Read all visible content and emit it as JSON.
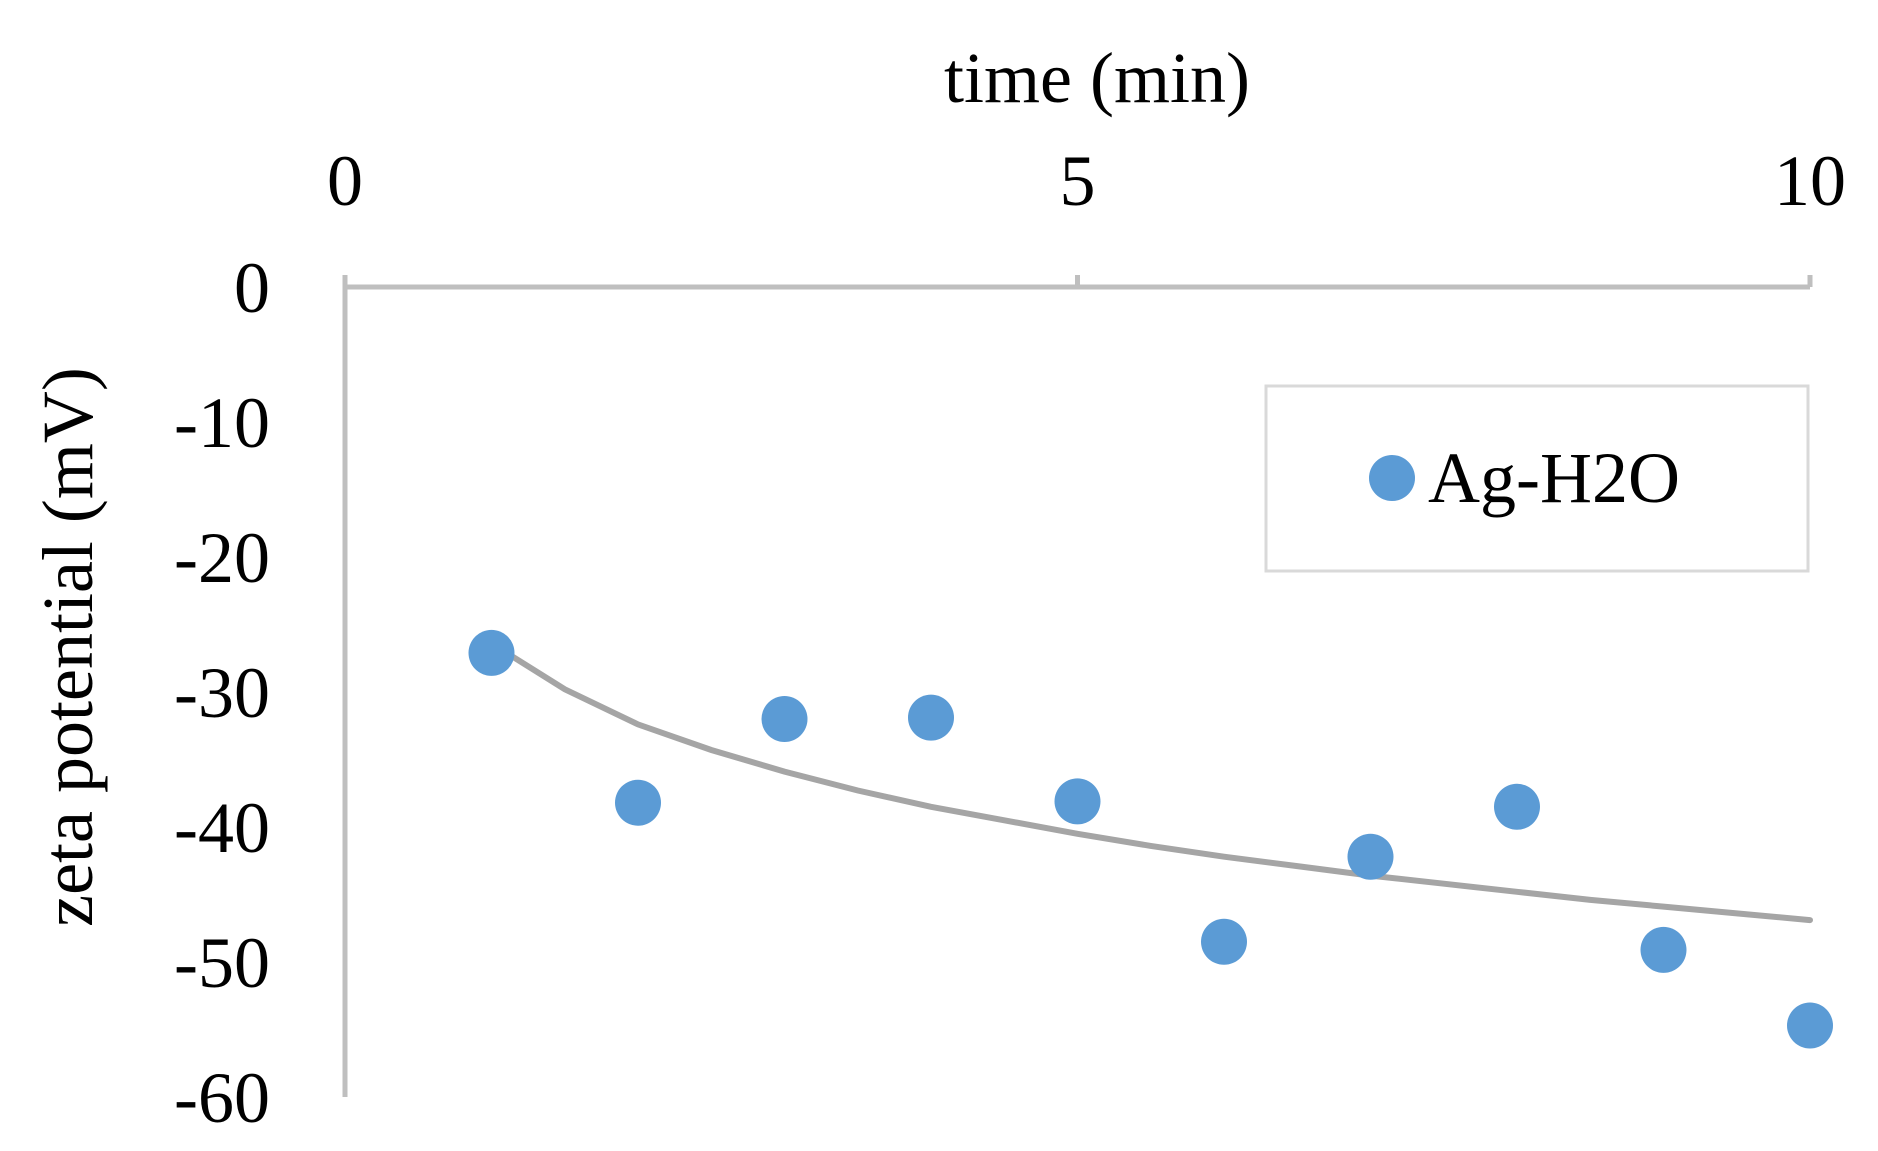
{
  "chart_data": {
    "type": "scatter",
    "title": "",
    "xlabel": "time (min)",
    "ylabel": "zeta potential (mV)",
    "xlim": [
      0,
      10
    ],
    "ylim": [
      -60,
      0
    ],
    "x_axis_position": "top",
    "x_ticks": [
      0,
      5,
      10
    ],
    "y_ticks": [
      0,
      -10,
      -20,
      -30,
      -40,
      -50,
      -60
    ],
    "grid": false,
    "legend_position": "top-right",
    "series": [
      {
        "name": "Ag-H2O",
        "color": "#5B9BD5",
        "x": [
          1,
          2,
          3,
          4,
          5,
          6,
          7,
          8,
          9,
          10
        ],
        "y": [
          -27.1,
          -38.2,
          -32.0,
          -31.9,
          -38.1,
          -48.5,
          -42.2,
          -38.5,
          -49.1,
          -54.7
        ]
      }
    ],
    "trendline": {
      "type": "logarithmic",
      "color": "#A5A5A5",
      "points": [
        [
          1,
          -26.4
        ],
        [
          1.5,
          -29.8
        ],
        [
          2,
          -32.4
        ],
        [
          2.5,
          -34.3
        ],
        [
          3,
          -35.9
        ],
        [
          3.5,
          -37.3
        ],
        [
          4,
          -38.5
        ],
        [
          4.5,
          -39.5
        ],
        [
          5,
          -40.5
        ],
        [
          5.5,
          -41.4
        ],
        [
          6,
          -42.2
        ],
        [
          6.5,
          -42.9
        ],
        [
          7,
          -43.6
        ],
        [
          7.5,
          -44.2
        ],
        [
          8,
          -44.8
        ],
        [
          8.5,
          -45.4
        ],
        [
          9,
          -45.9
        ],
        [
          9.5,
          -46.4
        ],
        [
          10,
          -46.9
        ]
      ]
    }
  }
}
